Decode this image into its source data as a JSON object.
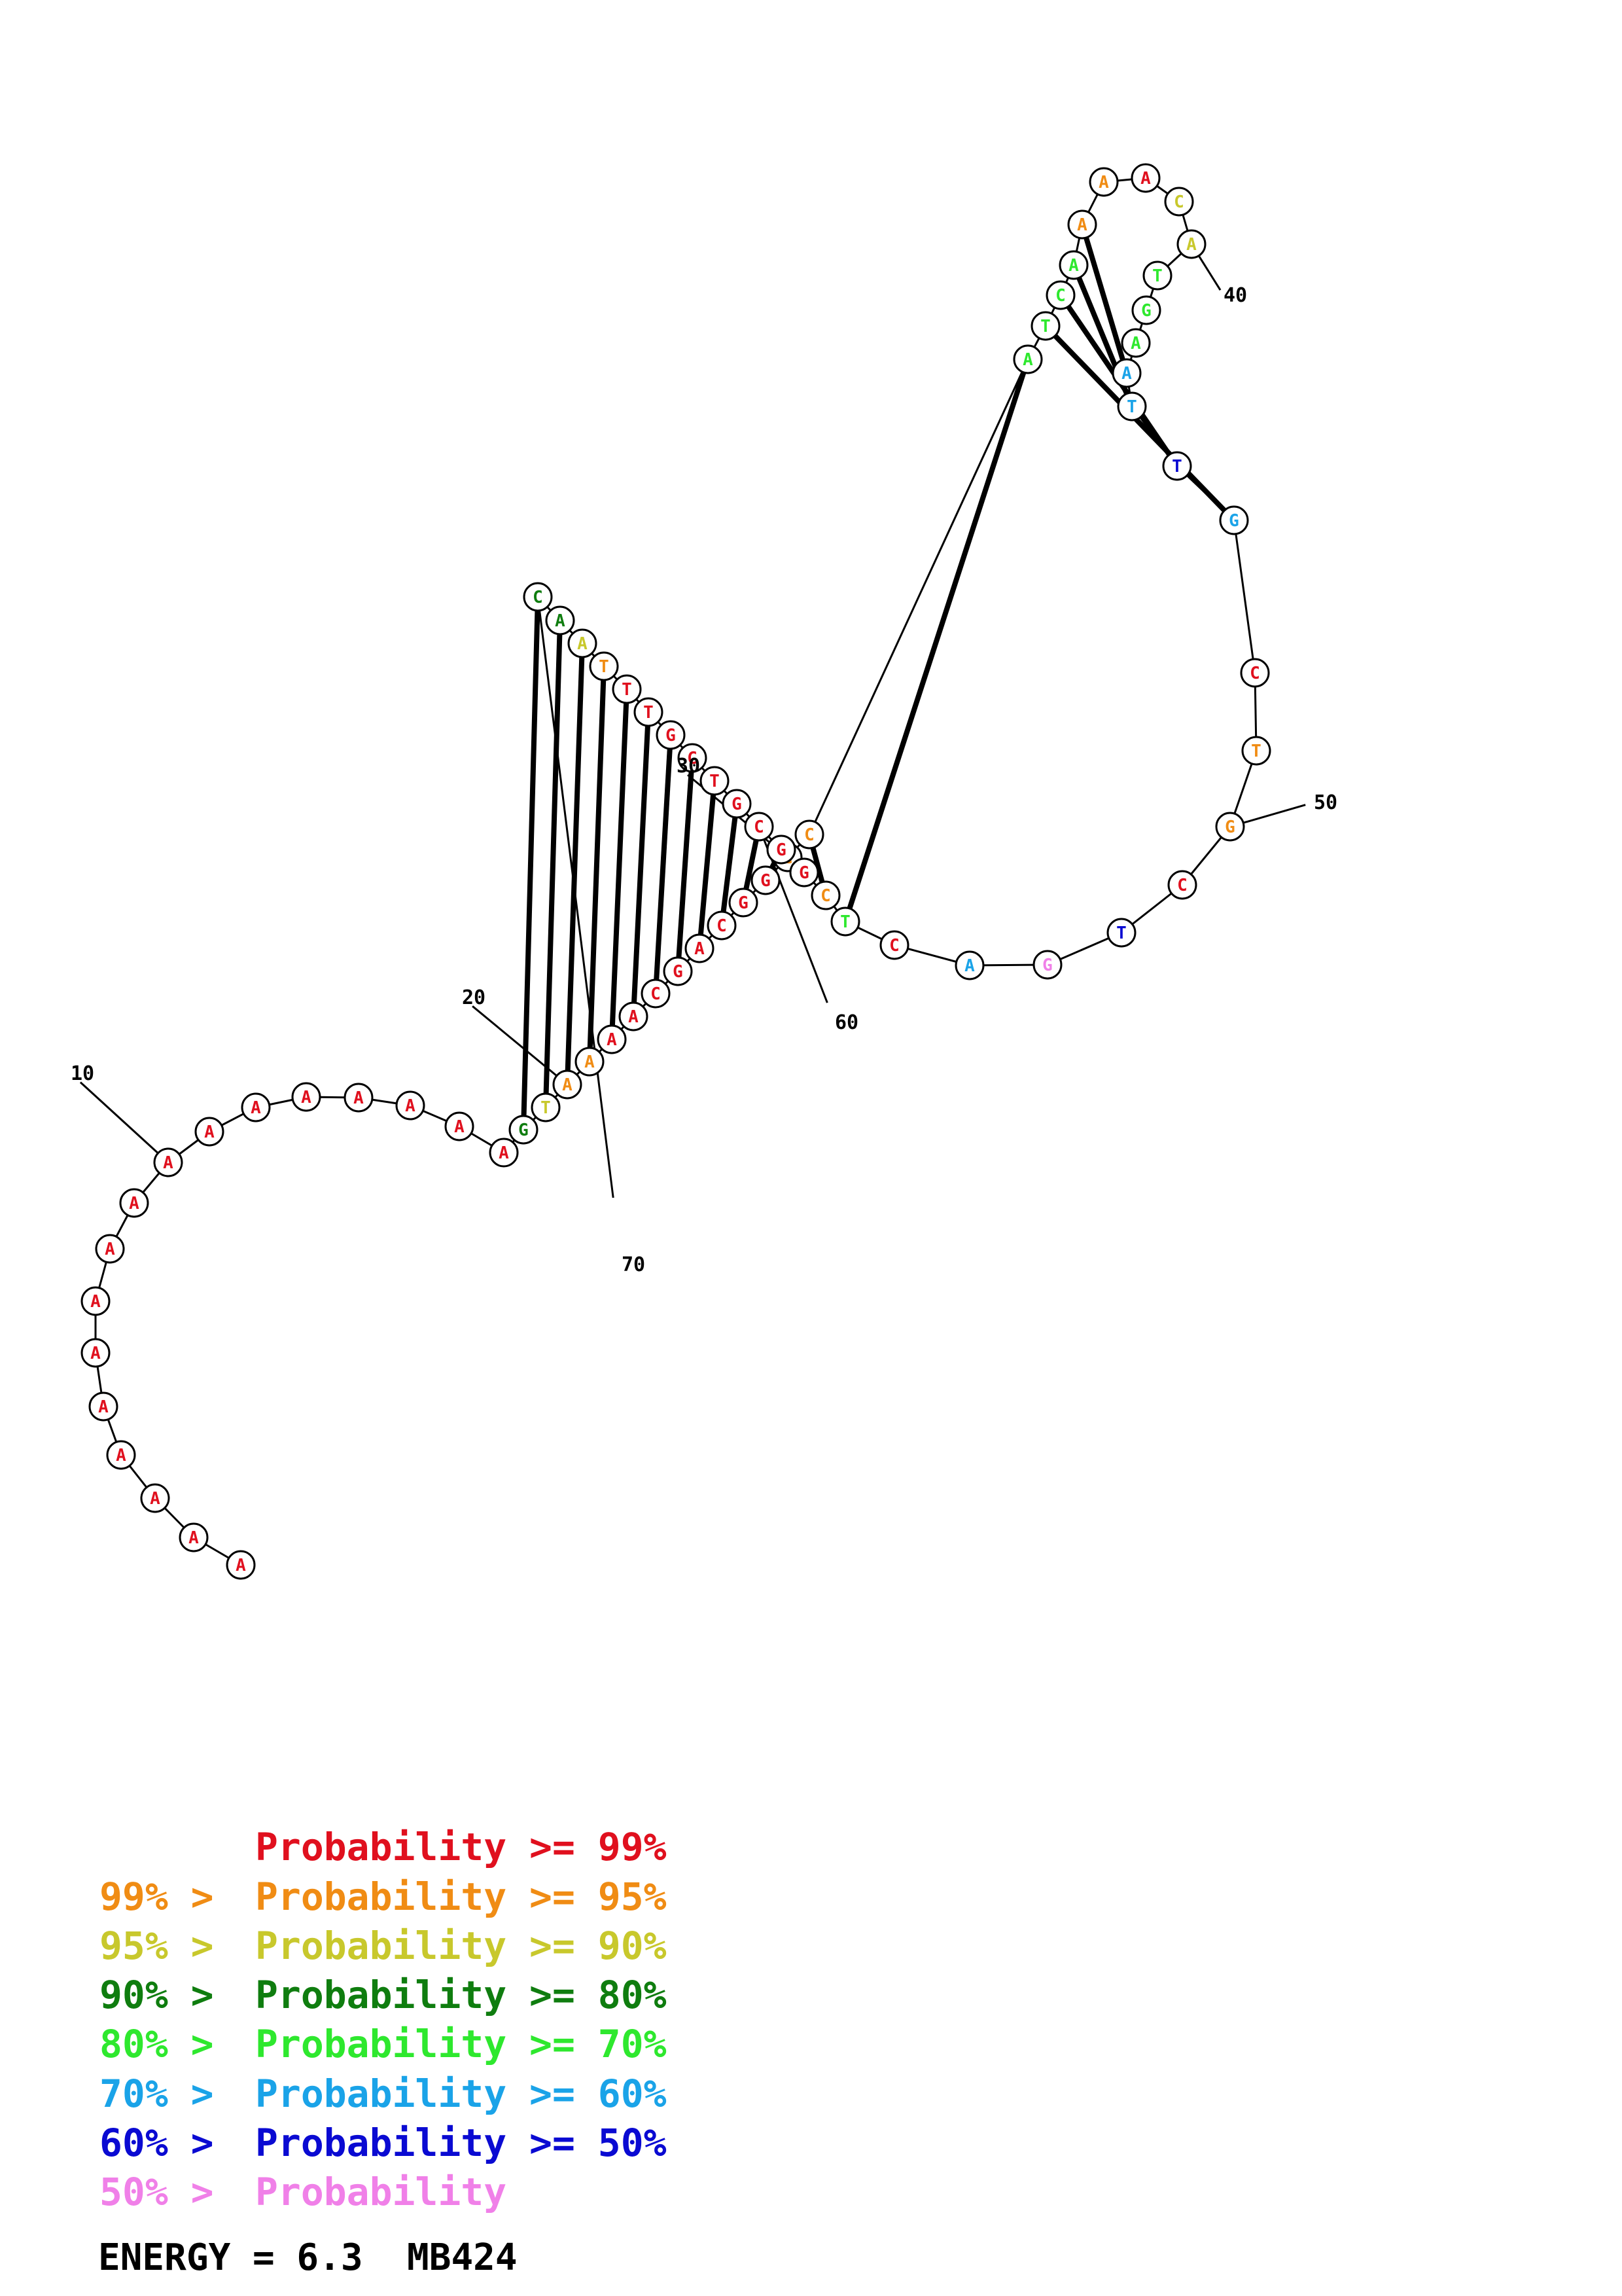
{
  "structure": {
    "sequence": [
      "A",
      "A",
      "A",
      "A",
      "A",
      "A",
      "A",
      "A",
      "A",
      "A",
      "A",
      "A",
      "A",
      "A",
      "A",
      "A",
      "A",
      "G",
      "T",
      "A",
      "A",
      "A",
      "A",
      "C",
      "G",
      "A",
      "C",
      "G",
      "G",
      "C",
      "C",
      "A",
      "T",
      "C",
      "A",
      "A",
      "A",
      "A",
      "C",
      "A",
      "T",
      "G",
      "A",
      "A",
      "T",
      "T",
      "G",
      "C",
      "T",
      "G",
      "C",
      "T",
      "G",
      "A",
      "C",
      "T",
      "C",
      "G",
      "G",
      "C",
      "G",
      "T",
      "C",
      "G",
      "T",
      "T",
      "T",
      "A",
      "A",
      "C"
    ],
    "colors": [
      "#e0101e",
      "#e0101e",
      "#e0101e",
      "#e0101e",
      "#e0101e",
      "#e0101e",
      "#e0101e",
      "#e0101e",
      "#e0101e",
      "#e0101e",
      "#e0101e",
      "#e0101e",
      "#e0101e",
      "#e0101e",
      "#e0101e",
      "#e0101e",
      "#e0101e",
      "#0f7d0f",
      "#c8c82c",
      "#f08c14",
      "#f08c14",
      "#e0101e",
      "#e0101e",
      "#e0101e",
      "#e0101e",
      "#e0101e",
      "#e0101e",
      "#e0101e",
      "#e0101e",
      "#f08c14",
      "#f08c14",
      "#2ee82e",
      "#2ee82e",
      "#2ee82e",
      "#2ee82e",
      "#f08c14",
      "#f08c14",
      "#e0101e",
      "#c8c82c",
      "#c8c82c",
      "#2ee82e",
      "#2ee82e",
      "#2ee82e",
      "#1aa3e8",
      "#1aa3e8",
      "#0a0ad2",
      "#1aa3e8",
      "#e0101e",
      "#f08c14",
      "#f08c14",
      "#e0101e",
      "#0a0ad2",
      "#f080e8",
      "#1aa3e8",
      "#e0101e",
      "#2ee82e",
      "#f08c14",
      "#e0101e",
      "#e0101e",
      "#e0101e",
      "#e0101e",
      "#e0101e",
      "#e0101e",
      "#e0101e",
      "#e0101e",
      "#e0101e",
      "#f08c14",
      "#c8c82c",
      "#0f7d0f",
      "#0f7d0f"
    ],
    "pairs": [
      [
        18,
        70
      ],
      [
        19,
        69
      ],
      [
        20,
        68
      ],
      [
        21,
        67
      ],
      [
        22,
        66
      ],
      [
        23,
        65
      ],
      [
        24,
        64
      ],
      [
        25,
        63
      ],
      [
        26,
        62
      ],
      [
        27,
        61
      ],
      [
        28,
        60
      ],
      [
        29,
        59
      ],
      [
        30,
        58
      ],
      [
        31,
        57
      ],
      [
        32,
        56
      ],
      [
        33,
        47
      ],
      [
        34,
        46
      ],
      [
        35,
        45
      ],
      [
        36,
        44
      ]
    ],
    "index_labels": [
      "10",
      "20",
      "30",
      "40",
      "50",
      "60",
      "70"
    ]
  },
  "legend": [
    {
      "prefix": "",
      "text": "Probability >= 99%",
      "color": "#e0101e"
    },
    {
      "prefix": "99% > ",
      "text": "Probability >= 95%",
      "color": "#f08c14"
    },
    {
      "prefix": "95% > ",
      "text": "Probability >= 90%",
      "color": "#c8c82c"
    },
    {
      "prefix": "90% > ",
      "text": "Probability >= 80%",
      "color": "#0f7d0f"
    },
    {
      "prefix": "80% > ",
      "text": "Probability >= 70%",
      "color": "#2ee82e"
    },
    {
      "prefix": "70% > ",
      "text": "Probability >= 60%",
      "color": "#1aa3e8"
    },
    {
      "prefix": "60% > ",
      "text": "Probability >= 50%",
      "color": "#0a0ad2"
    },
    {
      "prefix": "50% > ",
      "text": "Probability",
      "color": "#f080e8"
    }
  ],
  "energy_text": "ENERGY = 6.3  MB424"
}
